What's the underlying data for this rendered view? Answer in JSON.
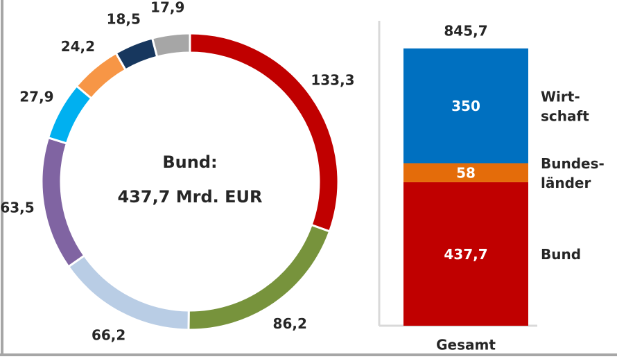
{
  "chart_data": [
    {
      "type": "donut",
      "center_label": [
        "Bund:",
        "437,7 Mrd. EUR"
      ],
      "values": [
        133.3,
        86.2,
        66.2,
        63.5,
        27.9,
        24.2,
        18.5,
        17.9
      ],
      "value_labels": [
        "133,3",
        "86,2",
        "66,2",
        "63,5",
        "27,9",
        "24,2",
        "18,5",
        "17,9"
      ],
      "colors": [
        "#c00000",
        "#77933c",
        "#b9cde5",
        "#8064a2",
        "#00b0f0",
        "#f79646",
        "#17375e",
        "#a6a6a6"
      ]
    },
    {
      "type": "stacked_bar",
      "categories": [
        "Gesamt"
      ],
      "ylim": [
        0,
        930
      ],
      "total": 845.7,
      "total_label": "845,7",
      "series": [
        {
          "name": "Bund",
          "color": "#c00000",
          "values": [
            437.7
          ],
          "value_labels": [
            "437,7"
          ]
        },
        {
          "name": "Bundes-\nländer",
          "color": "#e46c0a",
          "values": [
            58
          ]
        },
        {
          "name": "Wirt-\nschaft",
          "color": "#0070c0",
          "values": [
            350
          ]
        }
      ]
    }
  ]
}
